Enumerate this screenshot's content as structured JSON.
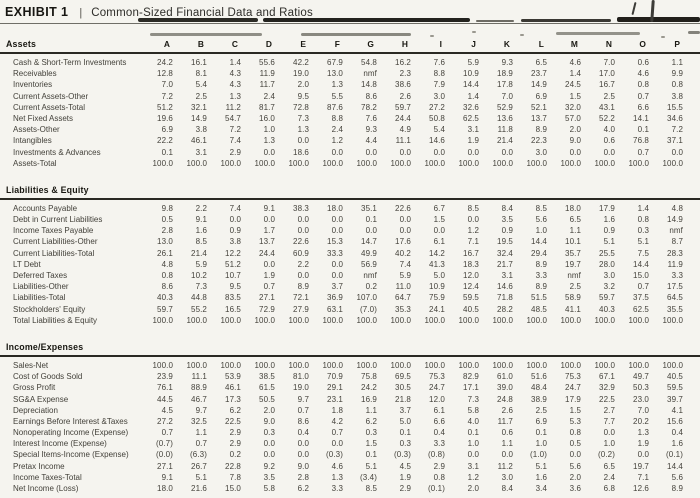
{
  "title": {
    "exhibit": "EXHIBIT 1",
    "separator": "|",
    "text": "Common-Sized Financial Data and Ratios"
  },
  "colors": {
    "paper": "#f5f4ef",
    "ink": "#3f3d37",
    "heading_ink": "#191812",
    "rule": "#2a2923"
  },
  "artifacts": {
    "pen_mark": "handwritten-strokes-top-right",
    "scan_streaks": "smudged-horizontal-rule-segments"
  },
  "table": {
    "columns": [
      "A",
      "B",
      "C",
      "D",
      "E",
      "F",
      "G",
      "H",
      "I",
      "J",
      "K",
      "L",
      "M",
      "N",
      "O",
      "P"
    ],
    "sections": [
      {
        "id": "assets",
        "name": "Assets",
        "rows": [
          {
            "label": "Cash & Short-Term Investments",
            "values": [
              "24.2",
              "16.1",
              "1.4",
              "55.6",
              "42.2",
              "67.9",
              "54.8",
              "16.2",
              "7.6",
              "5.9",
              "9.3",
              "6.5",
              "4.6",
              "7.0",
              "0.6",
              "1.1"
            ]
          },
          {
            "label": "Receivables",
            "values": [
              "12.8",
              "8.1",
              "4.3",
              "11.9",
              "19.0",
              "13.0",
              "nmf",
              "2.3",
              "8.8",
              "10.9",
              "18.9",
              "23.7",
              "1.4",
              "17.0",
              "4.6",
              "9.9"
            ]
          },
          {
            "label": "Inventories",
            "values": [
              "7.0",
              "5.4",
              "4.3",
              "11.7",
              "2.0",
              "1.3",
              "14.8",
              "38.6",
              "7.9",
              "14.4",
              "17.8",
              "14.9",
              "24.5",
              "16.7",
              "0.8",
              "0.8"
            ]
          },
          {
            "label": "Current Assets-Other",
            "values": [
              "7.2",
              "2.5",
              "1.3",
              "2.4",
              "9.5",
              "5.5",
              "8.6",
              "2.6",
              "3.0",
              "1.4",
              "7.0",
              "6.9",
              "1.5",
              "2.5",
              "0.7",
              "3.8"
            ]
          },
          {
            "label": "Current Assets-Total",
            "values": [
              "51.2",
              "32.1",
              "11.2",
              "81.7",
              "72.8",
              "87.6",
              "78.2",
              "59.7",
              "27.2",
              "32.6",
              "52.9",
              "52.1",
              "32.0",
              "43.1",
              "6.6",
              "15.5"
            ]
          },
          {
            "label": "Net Fixed Assets",
            "values": [
              "19.6",
              "14.9",
              "54.7",
              "16.0",
              "7.3",
              "8.8",
              "7.6",
              "24.4",
              "50.8",
              "62.5",
              "13.6",
              "13.7",
              "57.0",
              "52.2",
              "14.1",
              "34.6"
            ]
          },
          {
            "label": "Assets-Other",
            "values": [
              "6.9",
              "3.8",
              "7.2",
              "1.0",
              "1.3",
              "2.4",
              "9.3",
              "4.9",
              "5.4",
              "3.1",
              "11.8",
              "8.9",
              "2.0",
              "4.0",
              "0.1",
              "7.2"
            ]
          },
          {
            "label": "Intangibles",
            "values": [
              "22.2",
              "46.1",
              "7.4",
              "1.3",
              "0.0",
              "1.2",
              "4.4",
              "11.1",
              "14.6",
              "1.9",
              "21.4",
              "22.3",
              "9.0",
              "0.6",
              "76.8",
              "37.1"
            ]
          },
          {
            "label": "Investments & Advances",
            "values": [
              "0.1",
              "3.1",
              "2.9",
              "0.0",
              "18.6",
              "0.0",
              "0.0",
              "0.0",
              "0.0",
              "0.0",
              "0.0",
              "3.0",
              "0.0",
              "0.0",
              "0.7",
              "0.0"
            ]
          },
          {
            "label": "Assets-Total",
            "values": [
              "100.0",
              "100.0",
              "100.0",
              "100.0",
              "100.0",
              "100.0",
              "100.0",
              "100.0",
              "100.0",
              "100.0",
              "100.0",
              "100.0",
              "100.0",
              "100.0",
              "100.0",
              "100.0"
            ]
          }
        ]
      },
      {
        "id": "liabilities-equity",
        "name": "Liabilities & Equity",
        "rows": [
          {
            "label": "Accounts Payable",
            "values": [
              "9.8",
              "2.2",
              "7.4",
              "9.1",
              "38.3",
              "18.0",
              "35.1",
              "22.6",
              "6.7",
              "8.5",
              "8.4",
              "8.5",
              "18.0",
              "17.9",
              "1.4",
              "4.8"
            ]
          },
          {
            "label": "Debt in Current Liabilities",
            "values": [
              "0.5",
              "9.1",
              "0.0",
              "0.0",
              "0.0",
              "0.0",
              "0.1",
              "0.0",
              "1.5",
              "0.0",
              "3.5",
              "5.6",
              "6.5",
              "1.6",
              "0.8",
              "14.9"
            ]
          },
          {
            "label": "Income Taxes Payable",
            "values": [
              "2.8",
              "1.6",
              "0.9",
              "1.7",
              "0.0",
              "0.0",
              "0.0",
              "0.0",
              "0.0",
              "1.2",
              "0.9",
              "1.0",
              "1.1",
              "0.9",
              "0.3",
              "nmf"
            ]
          },
          {
            "label": "Current Liabilities-Other",
            "values": [
              "13.0",
              "8.5",
              "3.8",
              "13.7",
              "22.6",
              "15.3",
              "14.7",
              "17.6",
              "6.1",
              "7.1",
              "19.5",
              "14.4",
              "10.1",
              "5.1",
              "5.1",
              "8.7"
            ]
          },
          {
            "label": "Current Liabilities-Total",
            "values": [
              "26.1",
              "21.4",
              "12.2",
              "24.4",
              "60.9",
              "33.3",
              "49.9",
              "40.2",
              "14.2",
              "16.7",
              "32.4",
              "29.4",
              "35.7",
              "25.5",
              "7.5",
              "28.3"
            ]
          },
          {
            "label": "LT Debt",
            "values": [
              "4.8",
              "5.9",
              "51.2",
              "0.0",
              "2.2",
              "0.0",
              "56.9",
              "7.4",
              "41.3",
              "18.3",
              "21.7",
              "8.9",
              "19.7",
              "28.0",
              "14.4",
              "11.9"
            ]
          },
          {
            "label": "Deferred Taxes",
            "values": [
              "0.8",
              "10.2",
              "10.7",
              "1.9",
              "0.0",
              "0.0",
              "nmf",
              "5.9",
              "5.0",
              "12.0",
              "3.1",
              "3.3",
              "nmf",
              "3.0",
              "15.0",
              "3.3"
            ]
          },
          {
            "label": "Liabilities-Other",
            "values": [
              "8.6",
              "7.3",
              "9.5",
              "0.7",
              "8.9",
              "3.7",
              "0.2",
              "11.0",
              "10.9",
              "12.4",
              "14.6",
              "8.9",
              "2.5",
              "3.2",
              "0.7",
              "17.5"
            ]
          },
          {
            "label": "Liabilities-Total",
            "values": [
              "40.3",
              "44.8",
              "83.5",
              "27.1",
              "72.1",
              "36.9",
              "107.0",
              "64.7",
              "75.9",
              "59.5",
              "71.8",
              "51.5",
              "58.9",
              "59.7",
              "37.5",
              "64.5"
            ]
          },
          {
            "label": "Stockholders' Equity",
            "values": [
              "59.7",
              "55.2",
              "16.5",
              "72.9",
              "27.9",
              "63.1",
              "(7.0)",
              "35.3",
              "24.1",
              "40.5",
              "28.2",
              "48.5",
              "41.1",
              "40.3",
              "62.5",
              "35.5"
            ]
          },
          {
            "label": "Total Liabilities & Equity",
            "values": [
              "100.0",
              "100.0",
              "100.0",
              "100.0",
              "100.0",
              "100.0",
              "100.0",
              "100.0",
              "100.0",
              "100.0",
              "100.0",
              "100.0",
              "100.0",
              "100.0",
              "100.0",
              "100.0"
            ]
          }
        ]
      },
      {
        "id": "income-expenses",
        "name": "Income/Expenses",
        "rows": [
          {
            "label": "Sales-Net",
            "values": [
              "100.0",
              "100.0",
              "100.0",
              "100.0",
              "100.0",
              "100.0",
              "100.0",
              "100.0",
              "100.0",
              "100.0",
              "100.0",
              "100.0",
              "100.0",
              "100.0",
              "100.0",
              "100.0"
            ]
          },
          {
            "label": "Cost of Goods Sold",
            "values": [
              "23.9",
              "11.1",
              "53.9",
              "38.5",
              "81.0",
              "70.9",
              "75.8",
              "69.5",
              "75.3",
              "82.9",
              "61.0",
              "51.6",
              "75.3",
              "67.1",
              "49.7",
              "40.5"
            ]
          },
          {
            "label": "Gross Profit",
            "values": [
              "76.1",
              "88.9",
              "46.1",
              "61.5",
              "19.0",
              "29.1",
              "24.2",
              "30.5",
              "24.7",
              "17.1",
              "39.0",
              "48.4",
              "24.7",
              "32.9",
              "50.3",
              "59.5"
            ]
          },
          {
            "label": "SG&A Expense",
            "values": [
              "44.5",
              "46.7",
              "17.3",
              "50.5",
              "9.7",
              "23.1",
              "16.9",
              "21.8",
              "12.0",
              "7.3",
              "24.8",
              "38.9",
              "17.9",
              "22.5",
              "23.0",
              "39.7"
            ]
          },
          {
            "label": "Depreciation",
            "values": [
              "4.5",
              "9.7",
              "6.2",
              "2.0",
              "0.7",
              "1.8",
              "1.1",
              "3.7",
              "6.1",
              "5.8",
              "2.6",
              "2.5",
              "1.5",
              "2.7",
              "7.0",
              "4.1"
            ]
          },
          {
            "label": "Earnings Before Interest &Taxes",
            "values": [
              "27.2",
              "32.5",
              "22.5",
              "9.0",
              "8.6",
              "4.2",
              "6.2",
              "5.0",
              "6.6",
              "4.0",
              "11.7",
              "6.9",
              "5.3",
              "7.7",
              "20.2",
              "15.6"
            ]
          },
          {
            "label": "Nonoperating Income (Expense)",
            "values": [
              "0.7",
              "1.1",
              "2.9",
              "0.3",
              "0.4",
              "0.7",
              "0.3",
              "0.1",
              "0.4",
              "0.1",
              "0.6",
              "0.1",
              "0.8",
              "0.0",
              "1.3",
              "0.4"
            ]
          },
          {
            "label": "Interest Income (Expense)",
            "values": [
              "(0.7)",
              "0.7",
              "2.9",
              "0.0",
              "0.0",
              "0.0",
              "1.5",
              "0.3",
              "3.3",
              "1.0",
              "1.1",
              "1.0",
              "0.5",
              "1.0",
              "1.9",
              "1.6"
            ]
          },
          {
            "label": "Special Items-Income (Expense)",
            "values": [
              "(0.0)",
              "(6.3)",
              "0.2",
              "0.0",
              "0.0",
              "(0.3)",
              "0.1",
              "(0.3)",
              "(0.8)",
              "0.0",
              "0.0",
              "(1.0)",
              "0.0",
              "(0.2)",
              "0.0",
              "(0.1)"
            ]
          },
          {
            "label": "Pretax Income",
            "values": [
              "27.1",
              "26.7",
              "22.8",
              "9.2",
              "9.0",
              "4.6",
              "5.1",
              "4.5",
              "2.9",
              "3.1",
              "11.2",
              "5.1",
              "5.6",
              "6.5",
              "19.7",
              "14.4"
            ]
          },
          {
            "label": "Income Taxes-Total",
            "values": [
              "9.1",
              "5.1",
              "7.8",
              "3.5",
              "2.8",
              "1.3",
              "(3.4)",
              "1.9",
              "0.8",
              "1.2",
              "3.0",
              "1.6",
              "2.0",
              "2.4",
              "7.1",
              "5.6"
            ]
          },
          {
            "label": "Net Income (Loss)",
            "values": [
              "18.0",
              "21.6",
              "15.0",
              "5.8",
              "6.2",
              "3.3",
              "8.5",
              "2.9",
              "(0.1)",
              "2.0",
              "8.4",
              "3.4",
              "3.6",
              "6.8",
              "12.6",
              "8.9"
            ]
          }
        ]
      }
    ]
  }
}
